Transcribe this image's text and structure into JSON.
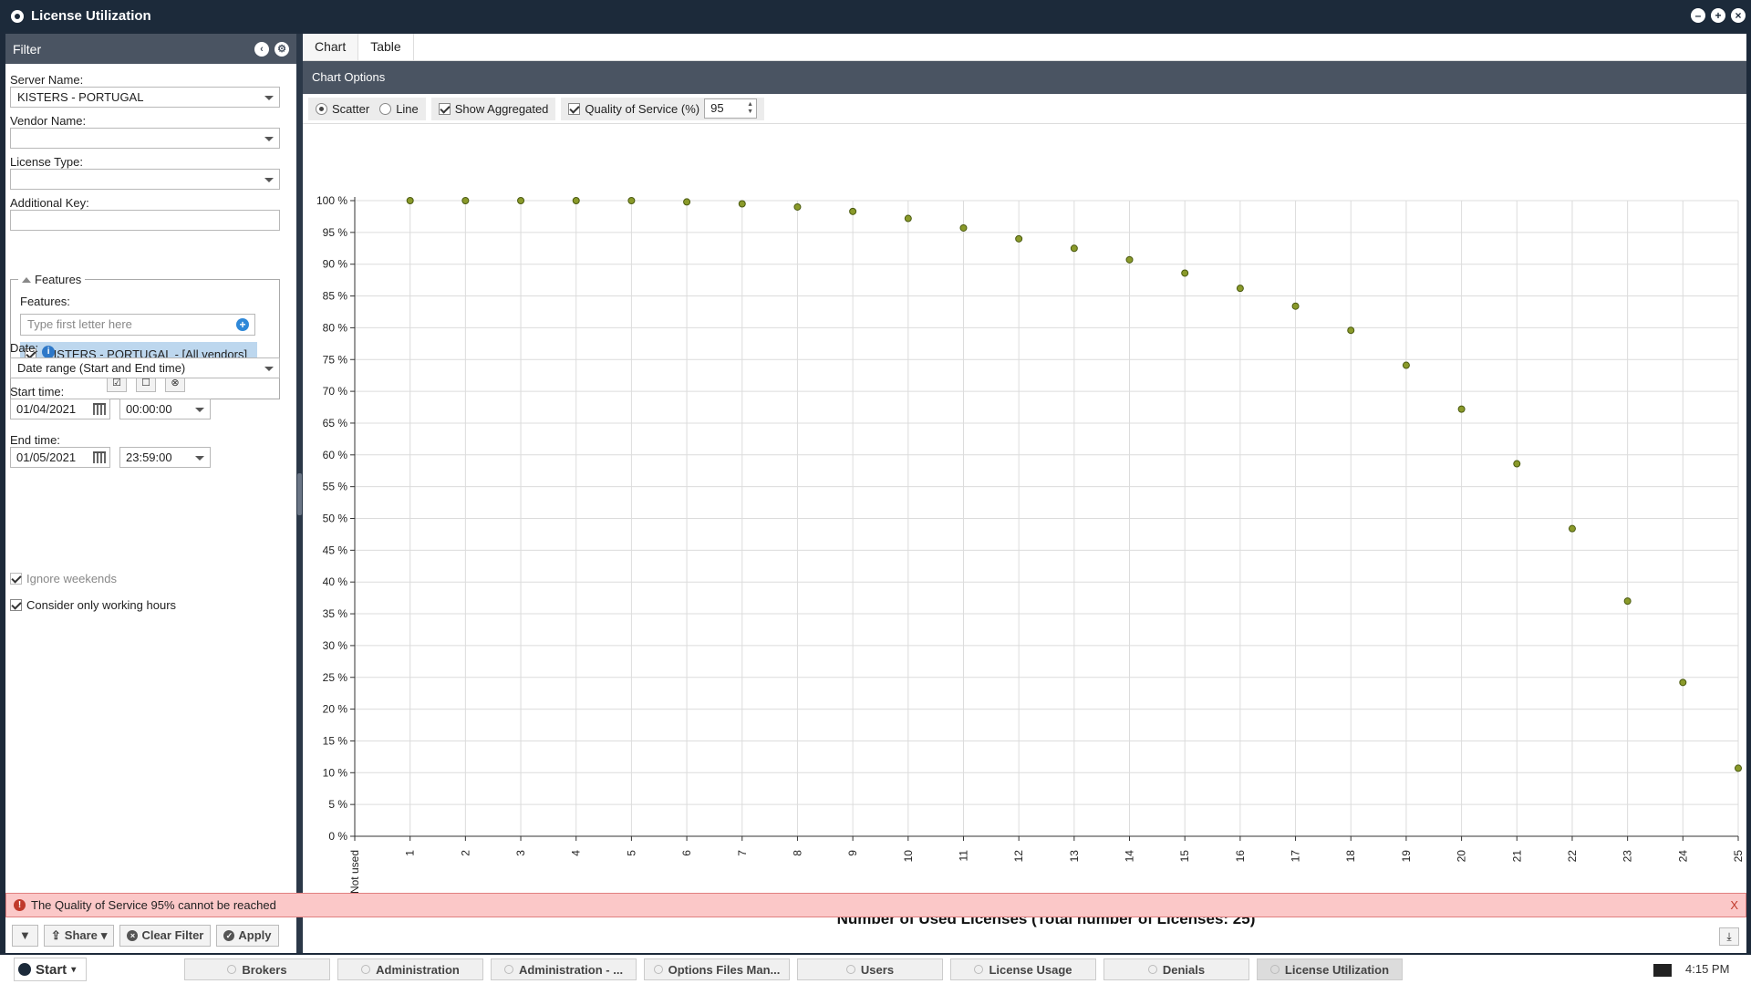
{
  "window": {
    "title": "License Utilization",
    "minimize": "–",
    "restore": "+",
    "close": "×"
  },
  "filter": {
    "header": "Filter",
    "server_label": "Server Name:",
    "server_value": "KISTERS - PORTUGAL",
    "vendor_label": "Vendor Name:",
    "vendor_value": "",
    "license_type_label": "License Type:",
    "license_type_value": "",
    "additional_key_label": "Additional Key:",
    "additional_key_value": "",
    "features_legend": "Features",
    "features_label": "Features:",
    "features_placeholder": "Type first letter here",
    "feature_item": "KISTERS - PORTUGAL - [All vendors]",
    "date_label": "Date:",
    "date_value": "Date range (Start and End time)",
    "start_label": "Start time:",
    "start_date": "01/04/2021",
    "start_time": "00:00:00",
    "end_label": "End time:",
    "end_date": "01/05/2021",
    "end_time": "23:59:00",
    "ignore_weekends": "Ignore weekends",
    "working_hours": "Consider only working hours",
    "buttons": {
      "share": "Share",
      "clear": "Clear Filter",
      "apply": "Apply"
    }
  },
  "main": {
    "tabs": [
      "Chart",
      "Table"
    ],
    "chart_options_title": "Chart Options",
    "options": {
      "scatter": "Scatter",
      "line": "Line",
      "show_aggregated": "Show Aggregated",
      "qos_label": "Quality of Service (%)",
      "qos_value": "95"
    }
  },
  "error": {
    "message": "The Quality of Service 95% cannot be reached",
    "close": "X"
  },
  "chart_data": {
    "type": "scatter",
    "xlabel": "Number of Used Licenses (Total number of Licenses: 25)",
    "categories": [
      "Not used",
      "1",
      "2",
      "3",
      "4",
      "5",
      "6",
      "7",
      "8",
      "9",
      "10",
      "11",
      "12",
      "13",
      "14",
      "15",
      "16",
      "17",
      "18",
      "19",
      "20",
      "21",
      "22",
      "23",
      "24",
      "25"
    ],
    "series": [
      {
        "x": [
          "1",
          "2",
          "3",
          "4",
          "5",
          "6",
          "7",
          "8",
          "9",
          "10",
          "11",
          "12",
          "13",
          "14",
          "15",
          "16",
          "17",
          "18",
          "19",
          "20",
          "21",
          "22",
          "23",
          "24",
          "25"
        ],
        "values": [
          100,
          100,
          100,
          100,
          100,
          99.8,
          99.5,
          99,
          98.3,
          97.2,
          95.7,
          94,
          92.5,
          90.7,
          88.6,
          86.2,
          83.4,
          79.6,
          74.1,
          67.2,
          58.6,
          48.4,
          37,
          24.2,
          10.7
        ]
      }
    ],
    "ylim": [
      0,
      100
    ],
    "yticks": [
      "0 %",
      "5 %",
      "10 %",
      "15 %",
      "20 %",
      "25 %",
      "30 %",
      "35 %",
      "40 %",
      "45 %",
      "50 %",
      "55 %",
      "60 %",
      "65 %",
      "70 %",
      "75 %",
      "80 %",
      "85 %",
      "90 %",
      "95 %",
      "100 %"
    ],
    "grid": true,
    "point_color": "#8a9a2a"
  },
  "taskbar": {
    "start": "Start",
    "items": [
      "Brokers",
      "Administration",
      "Administration - ...",
      "Options Files Man...",
      "Users",
      "License Usage",
      "Denials",
      "License Utilization"
    ],
    "clock": "4:15 PM"
  }
}
